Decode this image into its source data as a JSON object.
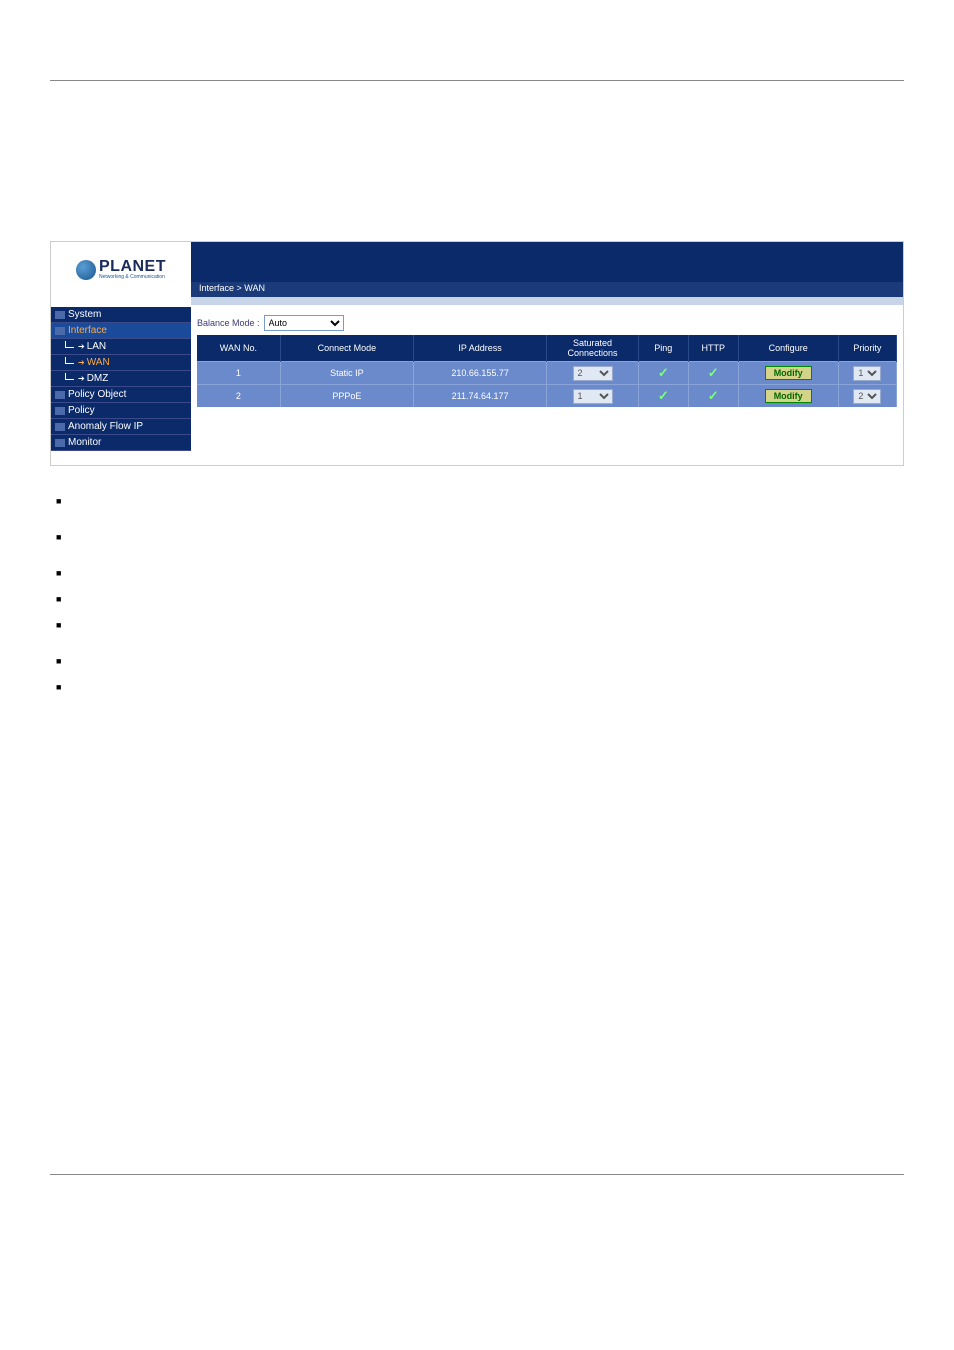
{
  "breadcrumb": "Interface > WAN",
  "logo": {
    "name": "PLANET",
    "tagline": "Networking & Communication"
  },
  "sidebar": [
    {
      "label": "System",
      "type": "nav"
    },
    {
      "label": "Interface",
      "type": "nav",
      "active": true
    },
    {
      "label": "LAN",
      "type": "sub"
    },
    {
      "label": "WAN",
      "type": "sub",
      "selected": true
    },
    {
      "label": "DMZ",
      "type": "sub"
    },
    {
      "label": "Policy Object",
      "type": "nav"
    },
    {
      "label": "Policy",
      "type": "nav"
    },
    {
      "label": "Anomaly Flow IP",
      "type": "nav"
    },
    {
      "label": "Monitor",
      "type": "nav"
    }
  ],
  "balance": {
    "label": "Balance Mode :",
    "value": "Auto"
  },
  "table": {
    "headers": [
      "WAN No.",
      "Connect Mode",
      "IP Address",
      "Saturated Connections",
      "Ping",
      "HTTP",
      "Configure",
      "Priority"
    ],
    "rows": [
      {
        "no": "1",
        "mode": "Static IP",
        "ip": "210.66.155.77",
        "sat": "2",
        "ping": true,
        "http": true,
        "btn": "Modify",
        "prio": "1"
      },
      {
        "no": "2",
        "mode": "PPPoE",
        "ip": "211.74.64.177",
        "sat": "1",
        "ping": true,
        "http": true,
        "btn": "Modify",
        "prio": "2"
      }
    ]
  },
  "colors": {
    "navy": "#0a2a6a",
    "navy_light": "#1a3a7a",
    "row_bg": "#6a8acc",
    "accent_orange": "#ffaa44",
    "modify_bg": "#d4d488",
    "modify_border": "#008800",
    "check": "#7aff7a"
  }
}
